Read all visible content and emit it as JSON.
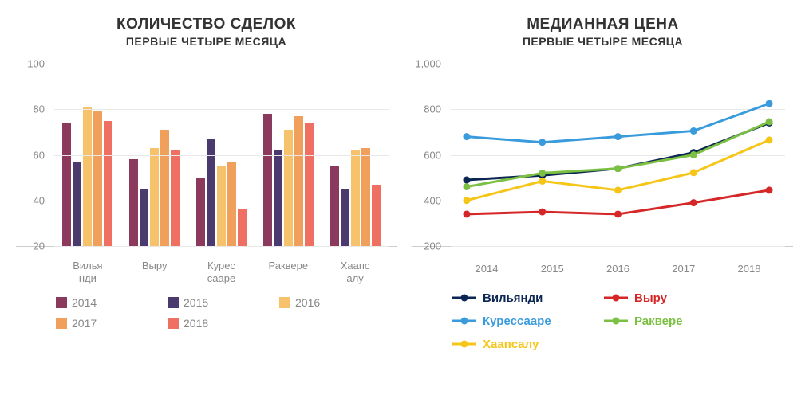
{
  "bar_chart": {
    "title": "КОЛИЧЕСТВО СДЕЛОК",
    "subtitle": "ПЕРВЫЕ ЧЕТЫРЕ МЕСЯЦА",
    "type": "bar",
    "ylim": [
      20,
      100
    ],
    "ytick_step": 20,
    "categories": [
      "Вилья\nнди",
      "Выру",
      "Курес\nсааре",
      "Раквере",
      "Хаапс\nалу"
    ],
    "series": [
      {
        "name": "2014",
        "color": "#8b3a5e",
        "values": [
          74,
          58,
          50,
          78,
          55
        ]
      },
      {
        "name": "2015",
        "color": "#4b3a6e",
        "values": [
          57,
          45,
          67,
          62,
          45
        ]
      },
      {
        "name": "2016",
        "color": "#f6c26b",
        "values": [
          81,
          63,
          55,
          71,
          62
        ]
      },
      {
        "name": "2017",
        "color": "#f0a05a",
        "values": [
          79,
          71,
          57,
          77,
          63
        ]
      },
      {
        "name": "2018",
        "color": "#ef6f63",
        "values": [
          75,
          62,
          36,
          74,
          47
        ]
      }
    ],
    "grid_color": "#e8e8e8",
    "axis_label_color": "#888888",
    "legend_label_color": "#888888"
  },
  "line_chart": {
    "title": "МЕДИАННАЯ ЦЕНА",
    "subtitle": "ПЕРВЫЕ ЧЕТЫРЕ МЕСЯЦА",
    "type": "line",
    "ylim": [
      200,
      1000
    ],
    "ytick_step": 200,
    "x_values": [
      2014,
      2015,
      2016,
      2017,
      2018
    ],
    "series": [
      {
        "name": "Вильянди",
        "color": "#0b2653",
        "values": [
          490,
          510,
          540,
          610,
          740
        ]
      },
      {
        "name": "Выру",
        "color": "#d62728",
        "values": [
          340,
          350,
          340,
          390,
          445
        ]
      },
      {
        "name": "Курессааре",
        "color": "#3a9bdc",
        "values": [
          680,
          655,
          680,
          705,
          825
        ]
      },
      {
        "name": "Раквере",
        "color": "#7bc043",
        "values": [
          460,
          520,
          540,
          600,
          745
        ]
      },
      {
        "name": "Хаапсалу",
        "color": "#f5c518",
        "values": [
          400,
          485,
          445,
          522,
          665
        ]
      }
    ],
    "line_width": 3,
    "marker_radius": 4.5,
    "grid_color": "#e8e8e8",
    "axis_label_color": "#888888"
  }
}
